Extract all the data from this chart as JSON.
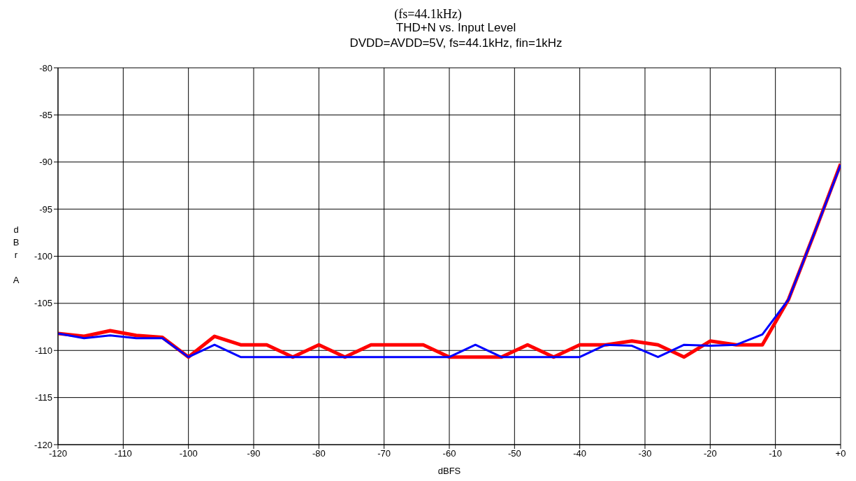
{
  "chart_data": {
    "type": "line",
    "title": "THD+N vs. Input Level",
    "subtitle": "DVDD=AVDD=5V, fs=44.1kHz, fin=1kHz",
    "annotations": [
      "(fs=44.1kHz)"
    ],
    "xlabel": "dBFS",
    "ylabel": "dBr A",
    "x": [
      -120,
      -116,
      -112,
      -108,
      -104,
      -100,
      -96,
      -92,
      -88,
      -84,
      -80,
      -76,
      -72,
      -68,
      -64,
      -60,
      -56,
      -52,
      -48,
      -44,
      -40,
      -36,
      -32,
      -28,
      -24,
      -20,
      -16,
      -12,
      -8,
      -4,
      0
    ],
    "series": [
      {
        "color": "#ff0000",
        "values": [
          -108.2,
          -108.5,
          -107.9,
          -108.4,
          -108.6,
          -110.7,
          -108.5,
          -109.4,
          -109.4,
          -110.7,
          -109.4,
          -110.7,
          -109.4,
          -109.4,
          -109.4,
          -110.7,
          -110.7,
          -110.7,
          -109.4,
          -110.7,
          -109.4,
          -109.4,
          -109.0,
          -109.4,
          -110.7,
          -109.0,
          -109.4,
          -109.4,
          -104.6,
          -97.5,
          -90.2
        ]
      },
      {
        "color": "#0000ff",
        "values": [
          -108.2,
          -108.7,
          -108.4,
          -108.7,
          -108.7,
          -110.7,
          -109.4,
          -110.7,
          -110.7,
          -110.7,
          -110.7,
          -110.7,
          -110.7,
          -110.7,
          -110.7,
          -110.7,
          -109.4,
          -110.7,
          -110.7,
          -110.7,
          -110.7,
          -109.4,
          -109.5,
          -110.7,
          -109.4,
          -109.5,
          -109.4,
          -108.3,
          -104.6,
          -97.5,
          -90.3
        ]
      }
    ],
    "xlim": [
      -120,
      0
    ],
    "xticks": [
      -120,
      -110,
      -100,
      -90,
      -80,
      -70,
      -60,
      -50,
      -40,
      -30,
      -20,
      -10,
      {
        "value": 0,
        "label": "+0"
      }
    ],
    "ylim": [
      -120,
      -80
    ],
    "yticks": [
      -120,
      -115,
      -110,
      -105,
      -100,
      -95,
      -90,
      -85,
      -80
    ],
    "grid": true,
    "legend": false,
    "marker": "none",
    "line_style": "solid"
  }
}
